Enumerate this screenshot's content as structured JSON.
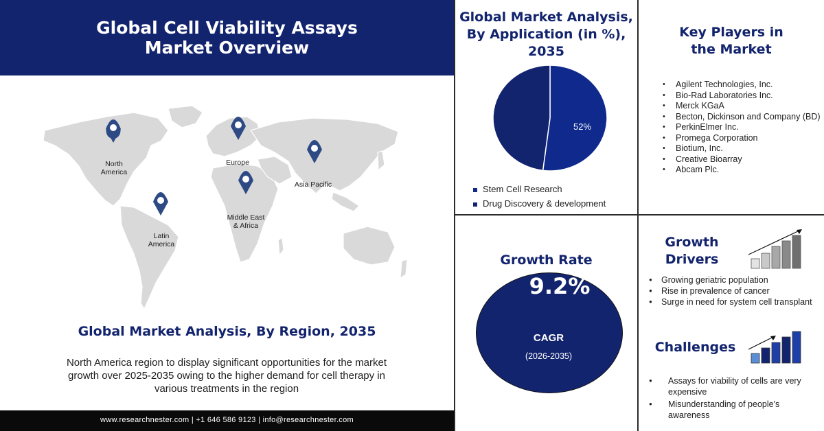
{
  "left_panel": {
    "title_line1": "Global Cell Viability Assays",
    "title_line2": "Market Overview",
    "regions": {
      "north_america": "North\nAmerica",
      "europe": "Europe",
      "asia_pacific": "Asia Pacific",
      "middle_east_africa": "Middle East\n& Africa",
      "latin_america": "Latin\nAmerica"
    },
    "region_title": "Global Market Analysis, By Region, 2035",
    "region_text": "North America region to display significant opportunities for the market growth over 2025-2035 owing to the higher demand for cell therapy in various treatments in the region",
    "footer": "www.researchnester.com | +1 646 586 9123 | info@researchnester.com"
  },
  "application": {
    "title_line1": "Global Market Analysis,",
    "title_line2": "By Application (in %),",
    "title_line3": "2035",
    "slice_label": "52%",
    "legend": [
      "Stem Cell Research",
      "Drug Discovery & development"
    ]
  },
  "chart_data": {
    "type": "pie",
    "title": "Global Market Analysis, By Application (in %), 2035",
    "categories": [
      "Stem Cell Research",
      "Drug Discovery & development"
    ],
    "values": [
      52,
      48
    ],
    "colors": [
      "#0f2a8c",
      "#13246e"
    ]
  },
  "players": {
    "title_line1": "Key Players in",
    "title_line2": "the Market",
    "items": [
      "Agilent Technologies, Inc.",
      "Bio-Rad Laboratories Inc.",
      "Merck KGaA",
      "Becton, Dickinson and Company (BD)",
      "PerkinElmer Inc.",
      "Promega Corporation",
      "Biotium, Inc.",
      "Creative Bioarray",
      "Abcam Plc."
    ]
  },
  "growth": {
    "title": "Growth Rate",
    "value": "9.2%",
    "label": "CAGR",
    "period": "(2026-2035)"
  },
  "drivers": {
    "title_line1": "Growth",
    "title_line2": "Drivers",
    "items": [
      "Growing geriatric population",
      "Rise in prevalence of cancer",
      "Surge in need for system cell transplant"
    ]
  },
  "challenges": {
    "title": "Challenges",
    "items": [
      "Assays for viability of cells are very expensive",
      "Misunderstanding of people's awareness"
    ]
  },
  "colors": {
    "navy": "#13246e",
    "blue": "#1f3fa8",
    "map_gray": "#d8d8d8",
    "pin": "#2e4a84"
  }
}
